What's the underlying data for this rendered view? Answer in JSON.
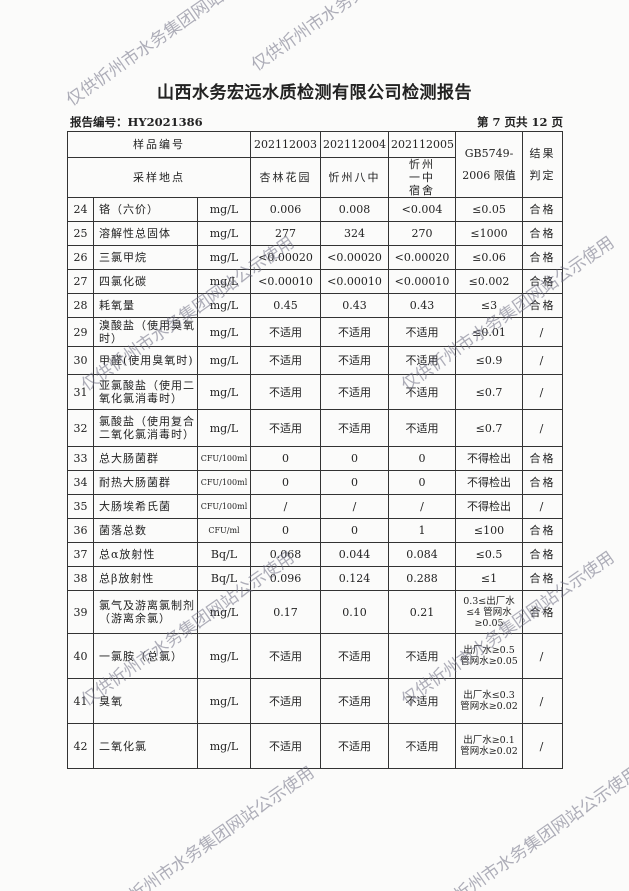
{
  "title": "山西水务宏远水质检测有限公司检测报告",
  "report_no": "报告编号：HY2021386",
  "page_no": "第 7 页共 12 页",
  "header": {
    "sample_no_label": "样品编号",
    "site_label": "采样地点",
    "samples": [
      "202112003",
      "202112004",
      "202112005"
    ],
    "sites": [
      "杏林花园",
      "忻州八中",
      "忻州一中宿舍"
    ],
    "standard_label": "GB5749-2006 限值",
    "result_label": "结果判定"
  },
  "rows": [
    {
      "no": "24",
      "name": "铬（六价）",
      "unit": "mg/L",
      "v": [
        "0.006",
        "0.008",
        "<0.004"
      ],
      "limit": "≤0.05",
      "result": "合格"
    },
    {
      "no": "25",
      "name": "溶解性总固体",
      "unit": "mg/L",
      "v": [
        "277",
        "324",
        "270"
      ],
      "limit": "≤1000",
      "result": "合格"
    },
    {
      "no": "26",
      "name": "三氯甲烷",
      "unit": "mg/L",
      "v": [
        "<0.00020",
        "<0.00020",
        "<0.00020"
      ],
      "limit": "≤0.06",
      "result": "合格"
    },
    {
      "no": "27",
      "name": "四氯化碳",
      "unit": "mg/L",
      "v": [
        "<0.00010",
        "<0.00010",
        "<0.00010"
      ],
      "limit": "≤0.002",
      "result": "合格"
    },
    {
      "no": "28",
      "name": "耗氧量",
      "unit": "mg/L",
      "v": [
        "0.45",
        "0.43",
        "0.43"
      ],
      "limit": "≤3",
      "result": "合格"
    },
    {
      "no": "29",
      "name": "溴酸盐（使用臭氧时）",
      "unit": "mg/L",
      "v": [
        "不适用",
        "不适用",
        "不适用"
      ],
      "limit": "≤0.01",
      "result": "/"
    },
    {
      "no": "30",
      "name": "甲醛(使用臭氧时)",
      "unit": "mg/L",
      "v": [
        "不适用",
        "不适用",
        "不适用"
      ],
      "limit": "≤0.9",
      "result": "/"
    },
    {
      "no": "31",
      "name": "亚氯酸盐（使用二氧化氯消毒时）",
      "unit": "mg/L",
      "v": [
        "不适用",
        "不适用",
        "不适用"
      ],
      "limit": "≤0.7",
      "result": "/"
    },
    {
      "no": "32",
      "name": "氯酸盐（使用复合二氧化氯消毒时）",
      "unit": "mg/L",
      "v": [
        "不适用",
        "不适用",
        "不适用"
      ],
      "limit": "≤0.7",
      "result": "/"
    },
    {
      "no": "33",
      "name": "总大肠菌群",
      "unit": "CFU/100ml",
      "v": [
        "0",
        "0",
        "0"
      ],
      "limit": "不得检出",
      "result": "合格"
    },
    {
      "no": "34",
      "name": "耐热大肠菌群",
      "unit": "CFU/100ml",
      "v": [
        "0",
        "0",
        "0"
      ],
      "limit": "不得检出",
      "result": "合格"
    },
    {
      "no": "35",
      "name": "大肠埃希氏菌",
      "unit": "CFU/100ml",
      "v": [
        "/",
        "/",
        "/"
      ],
      "limit": "不得检出",
      "result": "/"
    },
    {
      "no": "36",
      "name": "菌落总数",
      "unit": "CFU/ml",
      "v": [
        "0",
        "0",
        "1"
      ],
      "limit": "≤100",
      "result": "合格"
    },
    {
      "no": "37",
      "name": "总α放射性",
      "unit": "Bq/L",
      "v": [
        "0.068",
        "0.044",
        "0.084"
      ],
      "limit": "≤0.5",
      "result": "合格"
    },
    {
      "no": "38",
      "name": "总β放射性",
      "unit": "Bq/L",
      "v": [
        "0.096",
        "0.124",
        "0.288"
      ],
      "limit": "≤1",
      "result": "合格"
    },
    {
      "no": "39",
      "name": "氯气及游离氯制剂（游离余氯）",
      "unit": "mg/L",
      "v": [
        "0.17",
        "0.10",
        "0.21"
      ],
      "limit": "0.3≤出厂水≤4 管网水≥0.05",
      "result": "合格"
    },
    {
      "no": "40",
      "name": "一氯胺（总氯）",
      "unit": "mg/L",
      "v": [
        "不适用",
        "不适用",
        "不适用"
      ],
      "limit": "出厂水≥0.5 管网水≥0.05",
      "result": "/"
    },
    {
      "no": "41",
      "name": "臭氧",
      "unit": "mg/L",
      "v": [
        "不适用",
        "不适用",
        "不适用"
      ],
      "limit": "出厂水≤0.3 管网水≥0.02",
      "result": "/"
    },
    {
      "no": "42",
      "name": "二氧化氯",
      "unit": "mg/L",
      "v": [
        "不适用",
        "不适用",
        "不适用"
      ],
      "limit": "出厂水≥0.1 管网水≥0.02",
      "result": "/"
    }
  ],
  "watermark": "仅供忻州市水务集团网站公示使用"
}
